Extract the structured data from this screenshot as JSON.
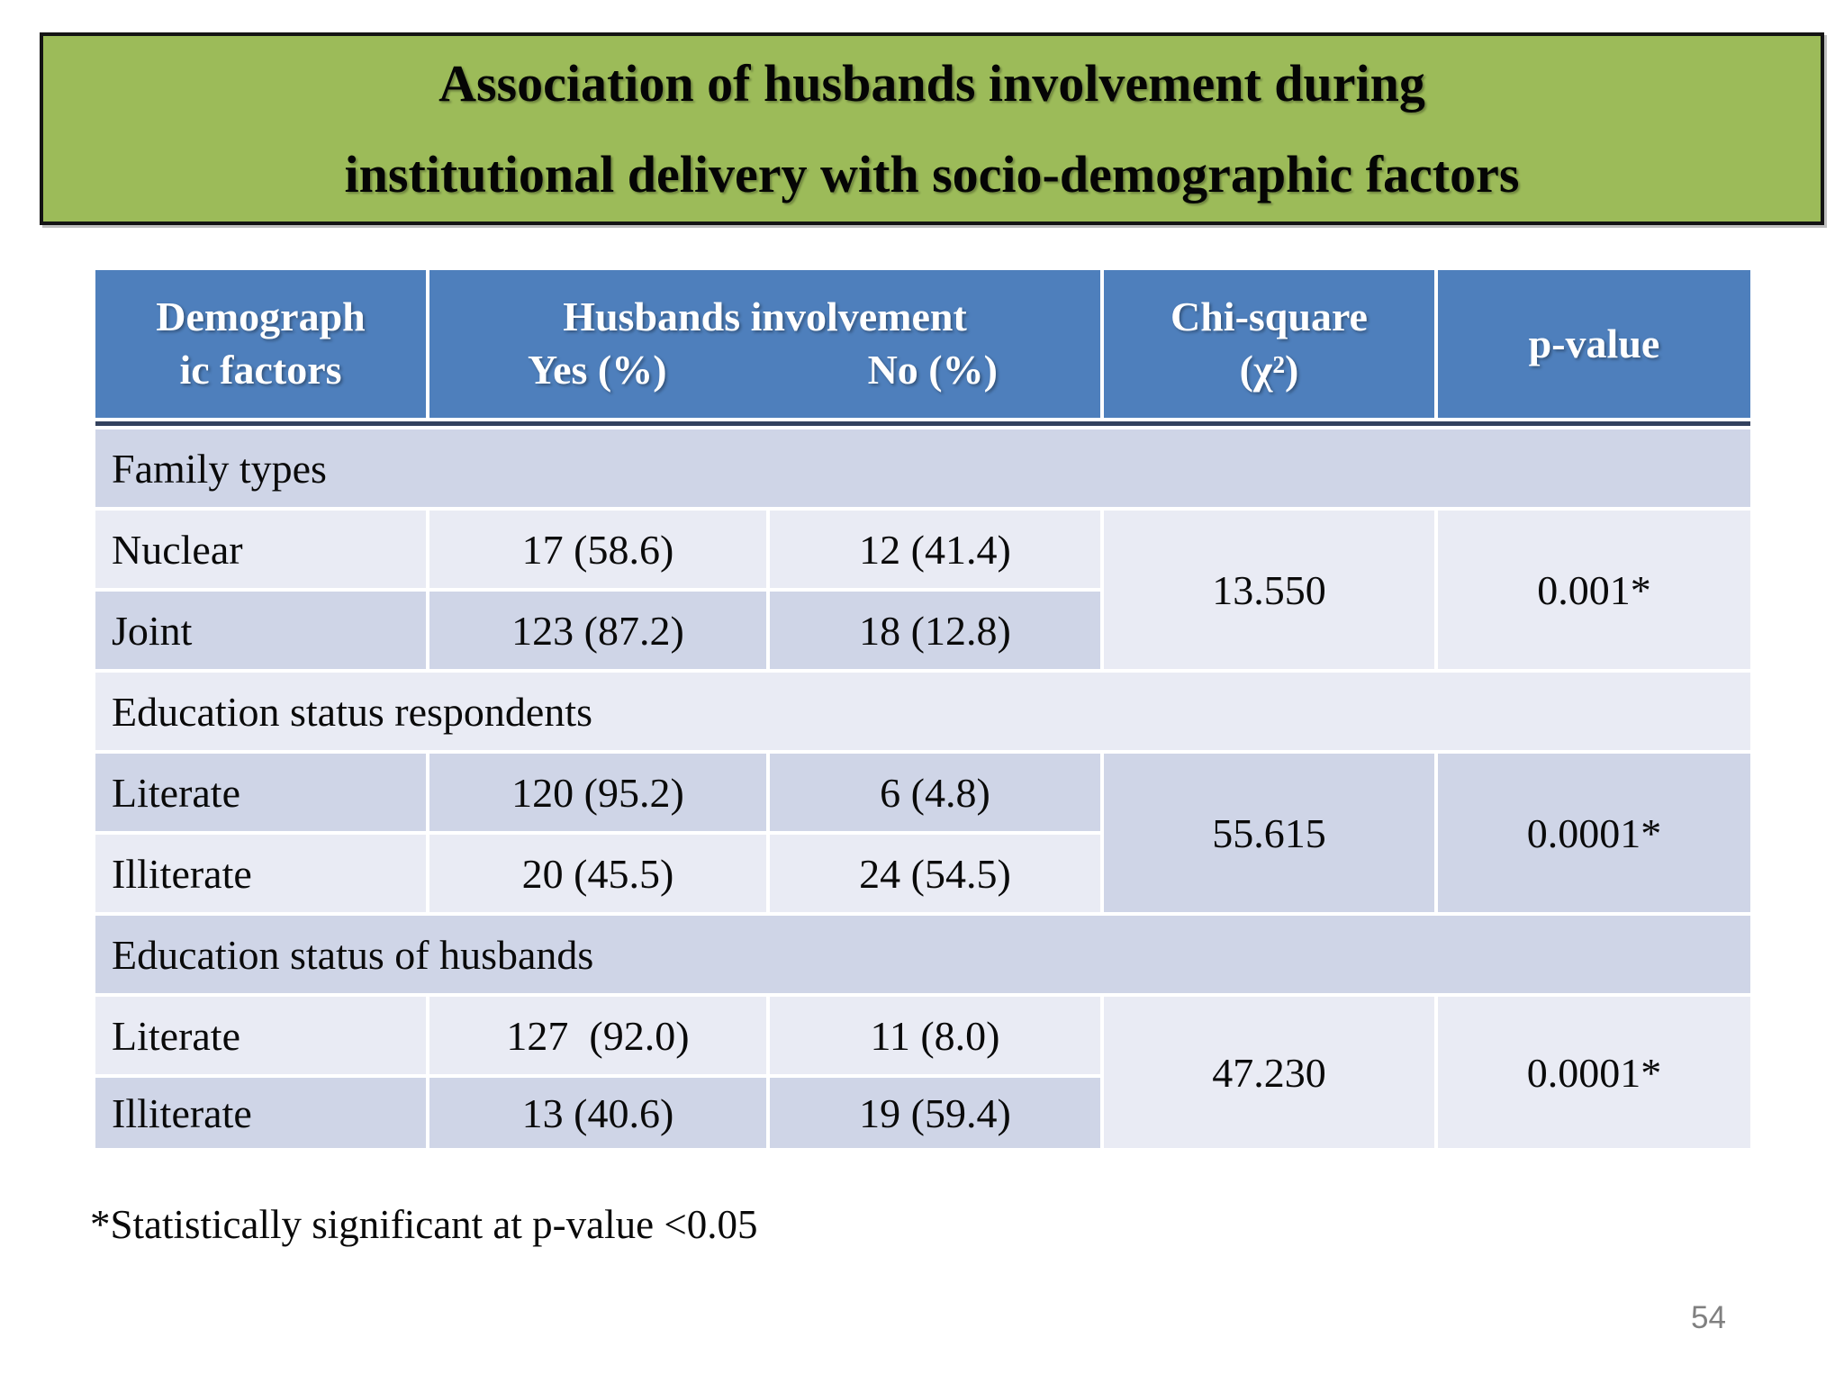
{
  "slide": {
    "title_lines": [
      "Association of husbands involvement during",
      "institutional delivery with socio-demographic factors"
    ],
    "footnote": "*Statistically significant at p-value <0.05",
    "page_number": "54"
  },
  "colors": {
    "title_green": "#9CBB59",
    "header_blue": "#4E7FBC",
    "band_dark": "#CFD5E7",
    "band_light": "#E9EBF4",
    "header_rule": "#33415E"
  },
  "table": {
    "header": {
      "demographic_lines": [
        "Demograph",
        "ic factors"
      ],
      "involvement": "Husbands involvement",
      "yes": "Yes (%)",
      "no": "No (%)",
      "chi_lines": [
        "Chi-square",
        "(χ²)"
      ],
      "p": "p-value"
    },
    "sections": [
      {
        "label": "Family types",
        "rows": [
          {
            "factor": "Nuclear",
            "yes": "17 (58.6)",
            "no": "12 (41.4)"
          },
          {
            "factor": "Joint",
            "yes": "123 (87.2)",
            "no": "18 (12.8)"
          }
        ],
        "chi_square": "13.550",
        "p_value": "0.001*"
      },
      {
        "label": "Education status respondents",
        "rows": [
          {
            "factor": "Literate",
            "yes": "120 (95.2)",
            "no": "6 (4.8)"
          },
          {
            "factor": "Illiterate",
            "yes": "20 (45.5)",
            "no": "24 (54.5)"
          }
        ],
        "chi_square": "55.615",
        "p_value": "0.0001*"
      },
      {
        "label": "Education status of husbands",
        "rows": [
          {
            "factor": "Literate",
            "yes": "127  (92.0)",
            "no": "11 (8.0)"
          },
          {
            "factor": "Illiterate",
            "yes": "13 (40.6)",
            "no": "19 (59.4)"
          }
        ],
        "chi_square": "47.230",
        "p_value": "0.0001*"
      }
    ]
  }
}
